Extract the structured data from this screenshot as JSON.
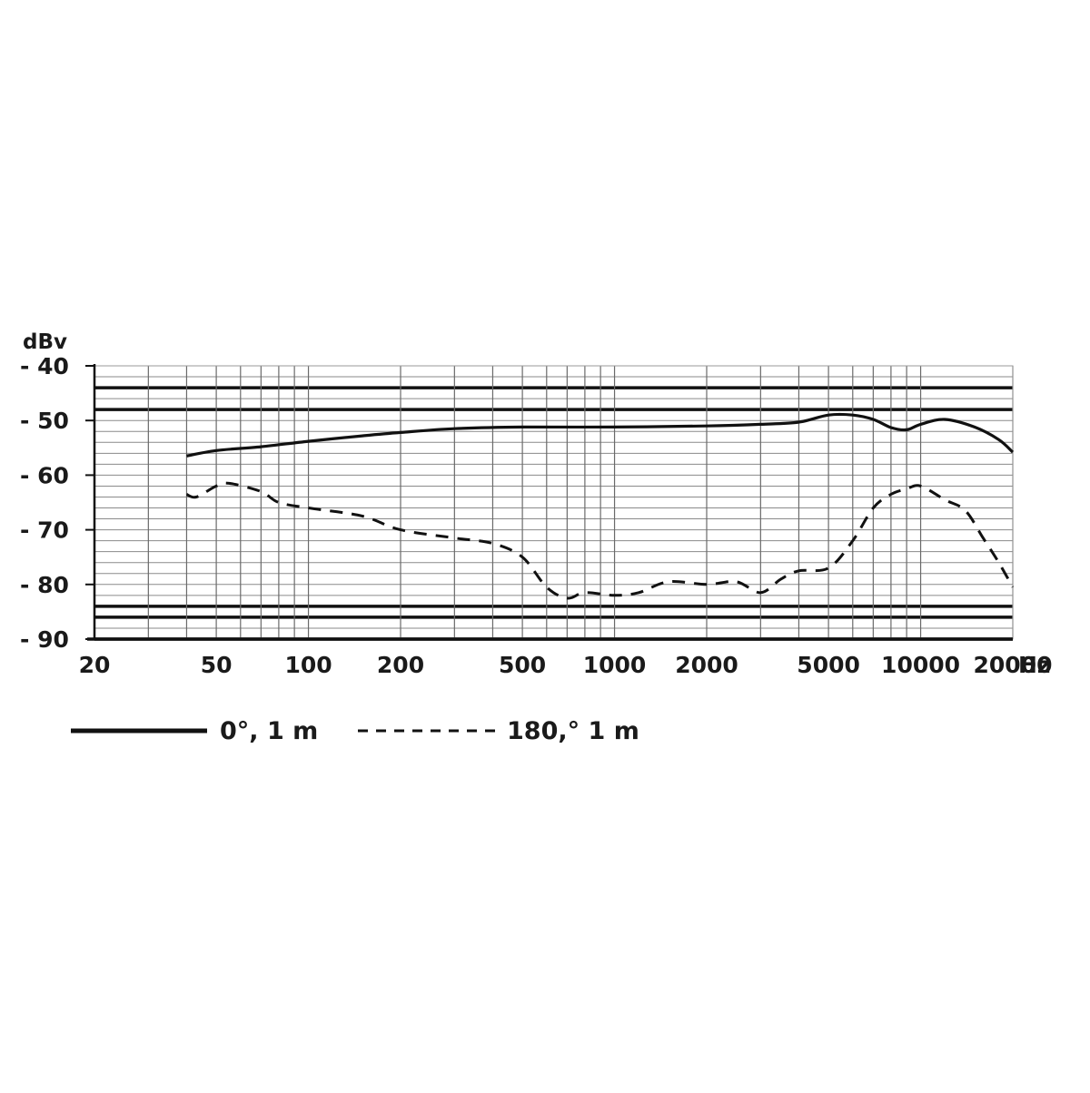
{
  "chart_data": {
    "type": "line",
    "xscale": "log",
    "xlim": [
      20,
      20000
    ],
    "ylim": [
      -90,
      -40
    ],
    "xlabel": "Hz",
    "ylabel": "dBv",
    "grid": true,
    "x_ticks": [
      20,
      50,
      100,
      200,
      500,
      1000,
      2000,
      5000,
      10000,
      20000
    ],
    "x_tick_labels": [
      "20",
      "50",
      "100",
      "200",
      "500",
      "1000",
      "2000",
      "5000",
      "10000",
      "20000"
    ],
    "y_ticks": [
      -40,
      -50,
      -60,
      -70,
      -80,
      -90
    ],
    "y_tick_labels": [
      "- 40",
      "- 50",
      "- 60",
      "- 70",
      "- 80",
      "- 90"
    ],
    "heavy_grid_y": [
      -44,
      -48,
      -84,
      -86,
      -90
    ],
    "legend_position": "bottom",
    "series": [
      {
        "name": "0°, 1 m",
        "style": "solid",
        "x": [
          40,
          50,
          70,
          100,
          150,
          200,
          300,
          500,
          1000,
          2000,
          3000,
          4000,
          5000,
          6000,
          7000,
          8000,
          9000,
          10000,
          12000,
          15000,
          18000,
          20000
        ],
        "y": [
          -56.5,
          -55.5,
          -54.8,
          -53.8,
          -52.8,
          -52.2,
          -51.5,
          -51.2,
          -51.2,
          -51.0,
          -50.7,
          -50.3,
          -49.0,
          -49.0,
          -49.8,
          -51.3,
          -51.7,
          -50.7,
          -49.8,
          -51.2,
          -53.5,
          -55.8
        ]
      },
      {
        "name": "180,° 1 m",
        "style": "dashed",
        "x": [
          40,
          43,
          50,
          55,
          70,
          80,
          100,
          150,
          200,
          300,
          400,
          500,
          600,
          700,
          800,
          1000,
          1200,
          1500,
          2000,
          2500,
          3000,
          3500,
          4000,
          5000,
          6000,
          7000,
          8000,
          9000,
          10000,
          12000,
          14000,
          16000,
          18000,
          20000
        ],
        "y": [
          -63.5,
          -64.0,
          -62.0,
          -61.5,
          -63.0,
          -65.0,
          -66.0,
          -67.5,
          -70.0,
          -71.5,
          -72.5,
          -75.0,
          -80.5,
          -82.5,
          -81.5,
          -82.0,
          -81.5,
          -79.5,
          -80.0,
          -79.5,
          -81.5,
          -79.0,
          -77.5,
          -77.0,
          -72.0,
          -66.0,
          -63.5,
          -62.5,
          -62.0,
          -64.5,
          -66.5,
          -71.5,
          -76.0,
          -80.5
        ]
      }
    ]
  }
}
